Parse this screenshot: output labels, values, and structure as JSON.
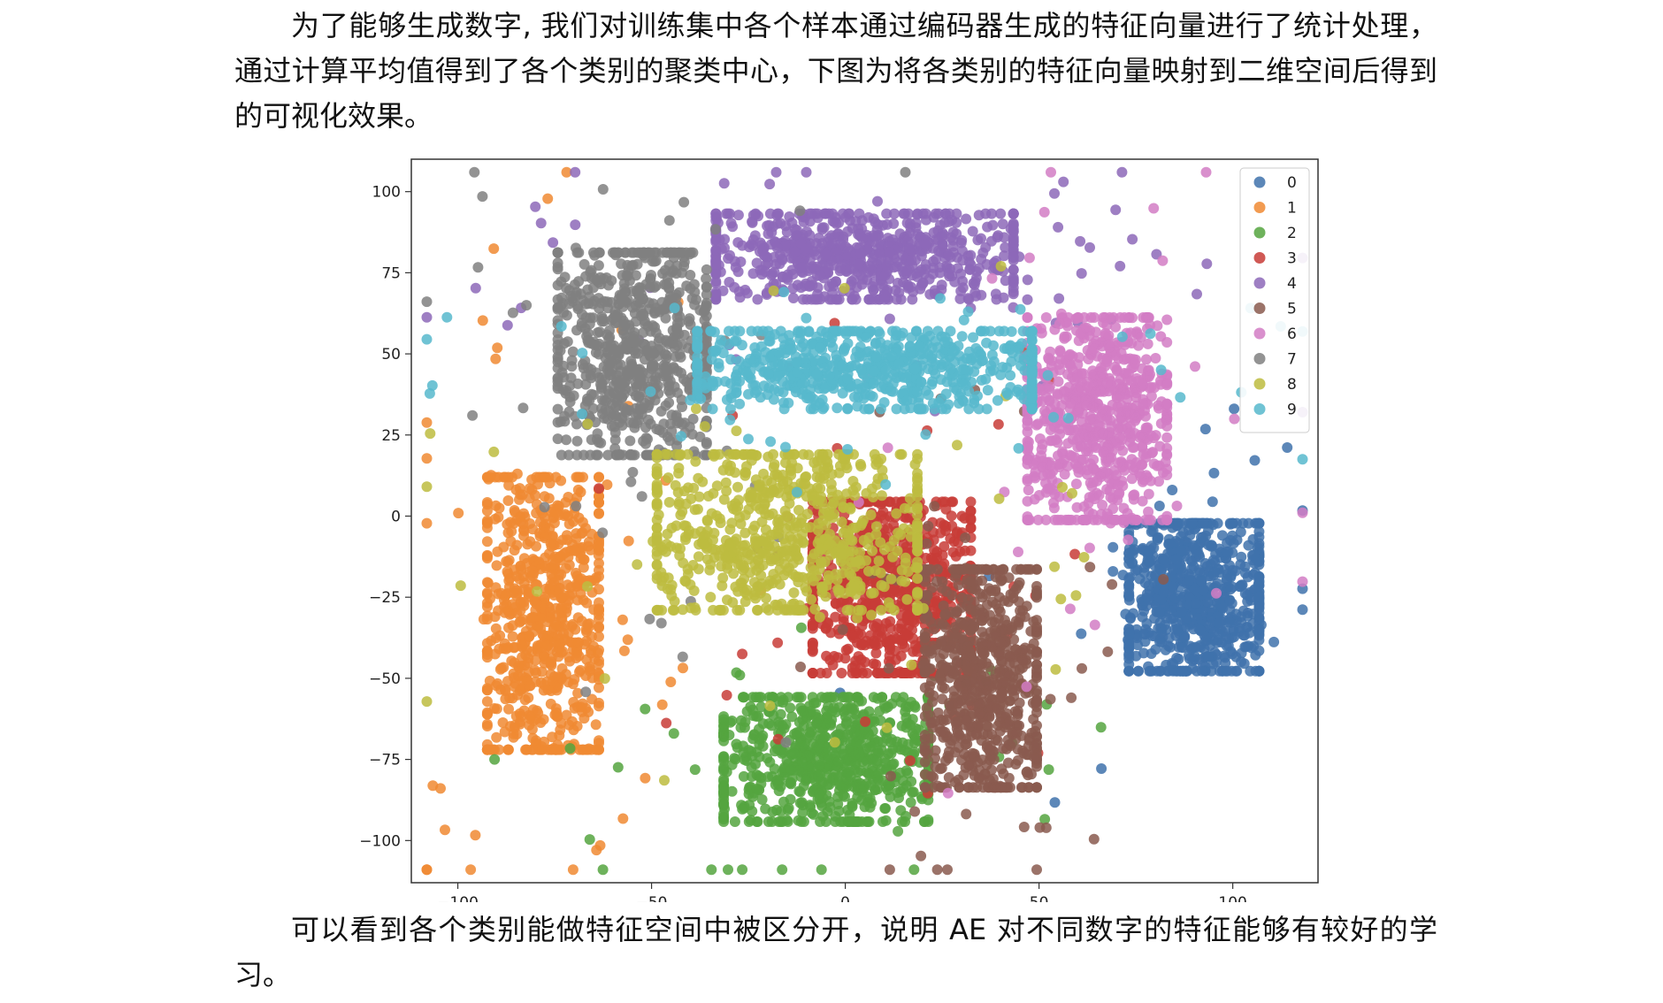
{
  "paragraphs": [
    "为了能够生成数字, 我们对训练集中各个样本通过编码器生成的特征向量进行了统计处理，通过计算平均值得到了各个类别的聚类中心，下图为将各类别的特征向量映射到二维空间后得到的可视化效果。",
    "可以看到各个类别能做特征空间中被区分开，说明 AE 对不同数字的特征能够有较好的学习。"
  ],
  "chart_data": {
    "type": "scatter",
    "title": "",
    "xlabel": "",
    "ylabel": "",
    "xlim": [
      -112,
      122
    ],
    "ylim": [
      -113,
      110
    ],
    "x_ticks": [
      -100,
      -50,
      0,
      50,
      100
    ],
    "y_ticks": [
      100,
      75,
      50,
      25,
      0,
      -25,
      -50,
      -75,
      -100
    ],
    "x_tick_labels": [
      "−100",
      "−50",
      "0",
      "50",
      "100"
    ],
    "y_tick_labels": [
      "100",
      "75",
      "50",
      "25",
      "0",
      "−25",
      "−50",
      "−75",
      "−100"
    ],
    "grid": false,
    "legend_position": "top-right",
    "series": [
      {
        "name": "0",
        "color": "#3f72ab",
        "center": [
          90,
          -25
        ],
        "spread": [
          14,
          19
        ],
        "count": 750
      },
      {
        "name": "1",
        "color": "#f08a32",
        "center": [
          -78,
          -30
        ],
        "spread": [
          12,
          35
        ],
        "count": 750
      },
      {
        "name": "2",
        "color": "#55a440",
        "center": [
          -5,
          -75
        ],
        "spread": [
          22,
          16
        ],
        "count": 750
      },
      {
        "name": "3",
        "color": "#c83c37",
        "center": [
          12,
          -22
        ],
        "spread": [
          17,
          22
        ],
        "count": 750
      },
      {
        "name": "4",
        "color": "#8d68b9",
        "center": [
          5,
          80
        ],
        "spread": [
          32,
          11
        ],
        "count": 750
      },
      {
        "name": "5",
        "color": "#8a5b4f",
        "center": [
          35,
          -50
        ],
        "spread": [
          12,
          28
        ],
        "count": 750
      },
      {
        "name": "6",
        "color": "#d27dc4",
        "center": [
          65,
          30
        ],
        "spread": [
          15,
          26
        ],
        "count": 750
      },
      {
        "name": "7",
        "color": "#808080",
        "center": [
          -55,
          50
        ],
        "spread": [
          16,
          26
        ],
        "count": 750
      },
      {
        "name": "8",
        "color": "#bdbc40",
        "center": [
          -15,
          -5
        ],
        "spread": [
          28,
          20
        ],
        "count": 750
      },
      {
        "name": "9",
        "color": "#57b9cd",
        "center": [
          5,
          45
        ],
        "spread": [
          36,
          10
        ],
        "count": 750
      }
    ]
  }
}
